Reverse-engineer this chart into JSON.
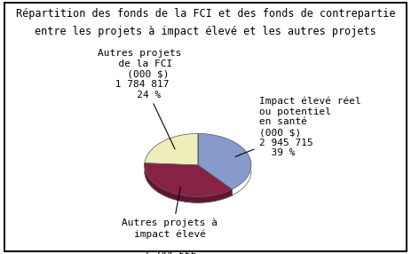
{
  "title_line1": "Répartition des fonds de la FCI et des fonds de contrepartie",
  "title_line2": "entre les projets à impact élevé et les autres projets",
  "slices": [
    {
      "value": 39,
      "color": "#8899CC",
      "side_color": "#6677AA"
    },
    {
      "value": 37,
      "color": "#882244",
      "side_color": "#661133"
    },
    {
      "value": 24,
      "color": "#EEEEBB",
      "side_color": "#CCCCAA"
    }
  ],
  "startangle": 90,
  "background_color": "#FFFFFF",
  "title_fontsize": 8.5,
  "label_fontsize": 8,
  "depth": 0.12
}
